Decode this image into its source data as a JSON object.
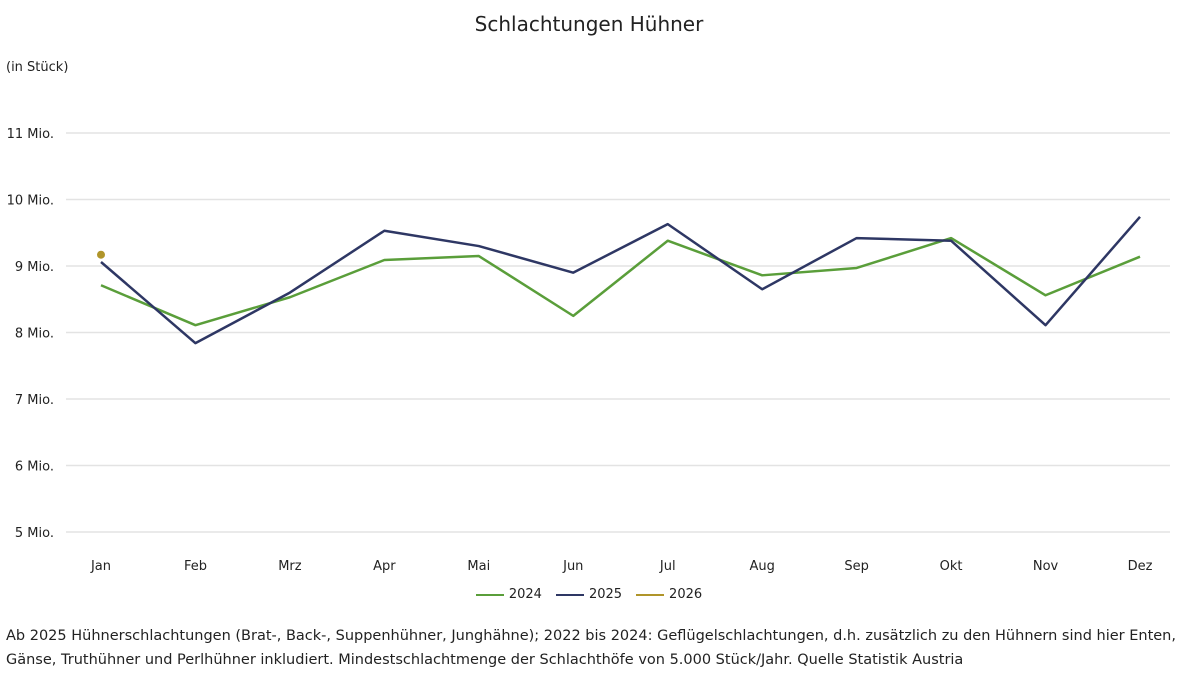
{
  "chart_data": {
    "type": "line",
    "title": "Schlachtungen Hühner",
    "ylabel": "(in Stück)",
    "xlabel": "",
    "categories": [
      "Jan",
      "Feb",
      "Mrz",
      "Apr",
      "Mai",
      "Jun",
      "Jul",
      "Aug",
      "Sep",
      "Okt",
      "Nov",
      "Dez"
    ],
    "yticks": [
      5,
      6,
      7,
      8,
      9,
      10,
      11
    ],
    "ytick_labels": [
      "5 Mio.",
      "6 Mio.",
      "7 Mio.",
      "8 Mio.",
      "9 Mio.",
      "10 Mio.",
      "11 Mio."
    ],
    "ylim": [
      5,
      11
    ],
    "unit": "Mio.",
    "grid": true,
    "legend_position": "bottom",
    "series": [
      {
        "name": "2024",
        "color": "#5a9e3a",
        "values": [
          8.71,
          8.11,
          8.53,
          9.09,
          9.15,
          8.25,
          9.38,
          8.86,
          8.97,
          9.42,
          8.56,
          9.14
        ]
      },
      {
        "name": "2025",
        "color": "#2e3764",
        "values": [
          9.06,
          7.84,
          8.6,
          9.53,
          9.3,
          8.9,
          9.63,
          8.65,
          9.42,
          9.38,
          8.11,
          9.74
        ]
      },
      {
        "name": "2026",
        "color": "#b0952a",
        "values": [
          9.17,
          null,
          null,
          null,
          null,
          null,
          null,
          null,
          null,
          null,
          null,
          null
        ]
      }
    ]
  },
  "footnote": "Ab 2025 Hühnerschlachtungen (Brat-, Back-, Suppenhühner, Junghähne); 2022 bis 2024: Geflügelschlachtungen, d.h. zusätzlich zu den Hühnern sind hier Enten, Gänse, Truthühner und Perlhühner inkludiert. Mindestschlachtmenge der Schlachthöfe von 5.000 Stück/Jahr. Quelle Statistik Austria"
}
